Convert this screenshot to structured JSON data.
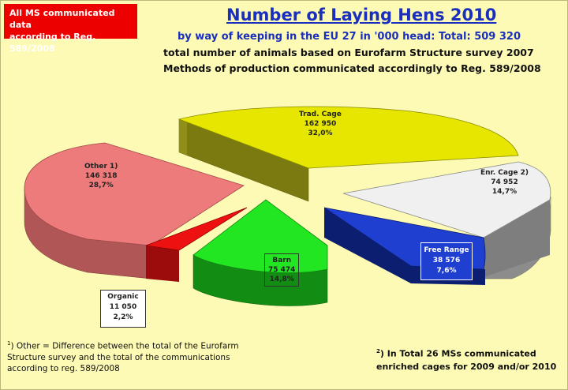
{
  "header": {
    "badge_line1": "All  MS communicated data",
    "badge_line2": "according to Reg. 589/2008",
    "title": "Number of Laying Hens 2010",
    "subtitle1": "by way of keeping in the EU 27 in '000 head: Total: 509 320",
    "subtitle2": "total number of animals based on Eurofarm Structure survey 2007",
    "subtitle3": "Methods of production communicated accordingly to Reg. 589/2008"
  },
  "footnotes": {
    "left_mark": "1",
    "left_text": ") Other =  Difference  between  the total of the Eurofarm Structure survey and the total of the communications according to reg. 589/2008",
    "right_mark": "2",
    "right_text": ")  In Total 26 MSs communicated enriched cages for 2009 and/or 2010"
  },
  "chart_data": {
    "type": "pie",
    "exploded": true,
    "three_d": true,
    "title": "Number of Laying Hens 2010",
    "unit": "'000 head",
    "total": "509 320",
    "slices": [
      {
        "name": "Trad. Cage",
        "value": "162 950",
        "numeric": 162950,
        "percent": "32,0%",
        "color": "#e6e600"
      },
      {
        "name": "Enr. Cage 2)",
        "value": "74 952",
        "numeric": 74952,
        "percent": "14,7%",
        "color": "#f0f0f0"
      },
      {
        "name": "Free Range",
        "value": "38 576",
        "numeric": 38576,
        "percent": "7,6%",
        "color": "#1f3fd0"
      },
      {
        "name": "Barn",
        "value": "75 474",
        "numeric": 75474,
        "percent": "14,8%",
        "color": "#22e622"
      },
      {
        "name": "Organic",
        "value": "11 050",
        "numeric": 11050,
        "percent": "2,2%",
        "color": "#ee1111"
      },
      {
        "name": "Other 1)",
        "value": "146 318",
        "numeric": 146318,
        "percent": "28,7%",
        "color": "#ee7b7b"
      }
    ]
  }
}
